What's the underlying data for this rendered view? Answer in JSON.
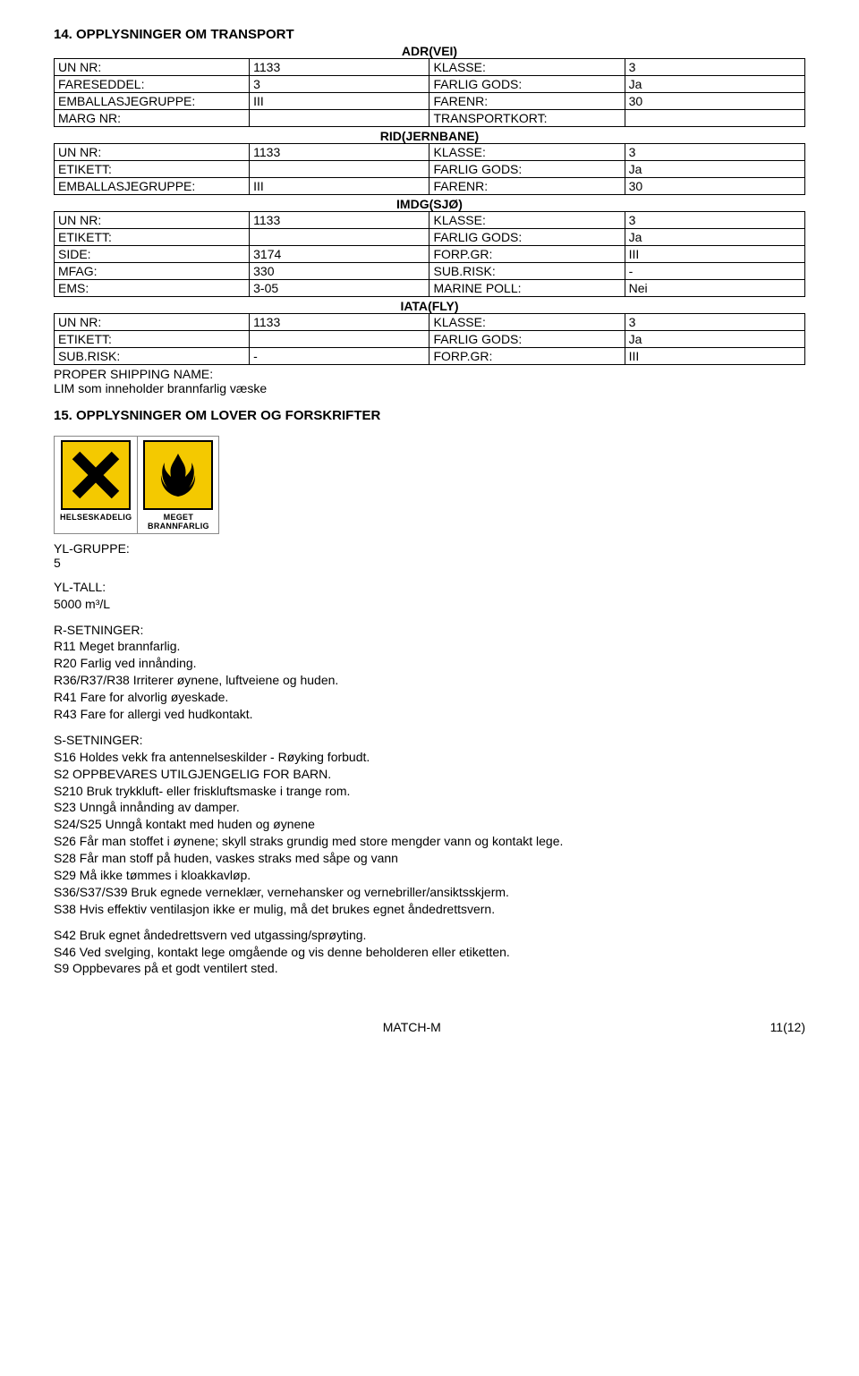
{
  "section14": {
    "heading": "14. OPPLYSNINGER OM TRANSPORT",
    "modes": [
      {
        "title": "ADR(VEI)",
        "rows": [
          [
            "UN NR:",
            "1133",
            "KLASSE:",
            "3"
          ],
          [
            "FARESEDDEL:",
            "3",
            "FARLIG GODS:",
            "Ja"
          ],
          [
            "EMBALLASJEGRUPPE:",
            "III",
            "FARENR:",
            "30"
          ],
          [
            "MARG NR:",
            "",
            "TRANSPORTKORT:",
            ""
          ]
        ]
      },
      {
        "title": "RID(JERNBANE)",
        "rows": [
          [
            "UN NR:",
            "1133",
            "KLASSE:",
            "3"
          ],
          [
            "ETIKETT:",
            "",
            "FARLIG GODS:",
            "Ja"
          ],
          [
            "EMBALLASJEGRUPPE:",
            "III",
            "FARENR:",
            "30"
          ]
        ]
      },
      {
        "title": "IMDG(SJØ)",
        "rows": [
          [
            "UN NR:",
            "1133",
            "KLASSE:",
            "3"
          ],
          [
            "ETIKETT:",
            "",
            "FARLIG GODS:",
            "Ja"
          ],
          [
            "SIDE:",
            "3174",
            "FORP.GR:",
            "III"
          ],
          [
            "MFAG:",
            "330",
            "SUB.RISK:",
            "-"
          ],
          [
            "EMS:",
            "3-05",
            "MARINE POLL:",
            "Nei"
          ]
        ]
      },
      {
        "title": "IATA(FLY)",
        "rows": [
          [
            "UN NR:",
            "1133",
            "KLASSE:",
            "3"
          ],
          [
            "ETIKETT:",
            "",
            "FARLIG GODS:",
            "Ja"
          ],
          [
            "SUB.RISK:",
            "-",
            "FORP.GR:",
            "III"
          ]
        ]
      }
    ],
    "proper_shipping_label": "PROPER SHIPPING NAME:",
    "proper_shipping_value": "LIM som inneholder brannfarlig væske"
  },
  "section15": {
    "heading": "15. OPPLYSNINGER OM LOVER OG FORSKRIFTER",
    "hazard_icons": [
      {
        "label": "HELSESKADELIG",
        "type": "x",
        "bg": "#f4c900"
      },
      {
        "label": "MEGET\nBRANNFARLIG",
        "type": "flame",
        "bg": "#f4c900"
      }
    ],
    "yl_gruppe_label": "YL-GRUPPE:",
    "yl_gruppe_value": "5",
    "yl_tall_label": "YL-TALL:",
    "yl_tall_value": "5000 m³/L",
    "r_label": "R-SETNINGER:",
    "r_lines": [
      "R11 Meget brannfarlig.",
      "R20 Farlig ved innånding.",
      "R36/R37/R38 Irriterer øynene, luftveiene og huden.",
      "R41 Fare for alvorlig øyeskade.",
      "R43 Fare for allergi ved hudkontakt."
    ],
    "s_label": "S-SETNINGER:",
    "s_lines": [
      "S16 Holdes vekk fra antennelseskilder - Røyking forbudt.",
      "S2 OPPBEVARES UTILGJENGELIG FOR BARN.",
      "S210 Bruk trykkluft- eller friskluftsmaske i trange rom.",
      "S23 Unngå innånding av damper.",
      "S24/S25 Unngå kontakt med huden og øynene",
      "S26 Får man stoffet i øynene; skyll straks grundig med store mengder vann og kontakt lege.",
      "S28 Får man stoff på huden, vaskes straks med såpe og vann",
      "S29 Må ikke tømmes i kloakkavløp.",
      "S36/S37/S39 Bruk egnede verneklær, vernehansker og vernebriller/ansiktsskjerm.",
      "S38 Hvis effektiv ventilasjon ikke er mulig, må det brukes egnet åndedrettsvern."
    ],
    "s_lines2": [
      "S42 Bruk egnet åndedrettsvern ved utgassing/sprøyting.",
      "S46 Ved svelging, kontakt lege omgående og vis denne beholderen eller etiketten.",
      "S9 Oppbevares på et godt ventilert sted."
    ]
  },
  "footer": {
    "product": "MATCH-M",
    "page": "11(12)"
  },
  "colors": {
    "hazard_bg": "#f4c900",
    "border": "#000000"
  }
}
